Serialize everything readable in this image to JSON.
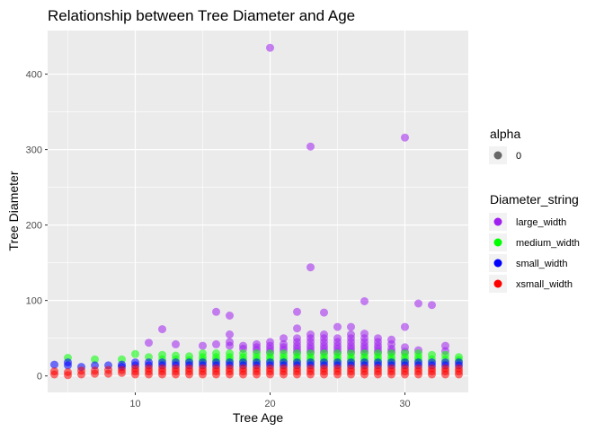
{
  "chart_data": {
    "type": "scatter",
    "title": "Relationship between Tree Diameter and Age",
    "xlabel": "Tree Age",
    "ylabel": "Tree Diameter",
    "xlim": [
      3.5,
      34.7
    ],
    "ylim": [
      -21.8,
      457.8
    ],
    "x_ticks": [
      10,
      20,
      30
    ],
    "y_ticks": [
      0,
      100,
      200,
      300,
      400
    ],
    "grid": true,
    "legend_position": "right",
    "alpha_legend": {
      "title": "alpha",
      "entries": [
        "0"
      ],
      "color": "#595959"
    },
    "color_legend": {
      "title": "Diameter_string",
      "entries": [
        {
          "label": "large_width",
          "color": "#A020F0"
        },
        {
          "label": "medium_width",
          "color": "#00FF00"
        },
        {
          "label": "small_width",
          "color": "#0000FF"
        },
        {
          "label": "xsmall_width",
          "color": "#FF0000"
        }
      ]
    },
    "series": [
      {
        "name": "large_width",
        "color": "#A020F0",
        "points": [
          [
            11,
            44
          ],
          [
            12,
            62
          ],
          [
            13,
            42
          ],
          [
            15,
            40
          ],
          [
            16,
            85
          ],
          [
            16,
            42
          ],
          [
            17,
            80
          ],
          [
            17,
            55
          ],
          [
            17,
            45
          ],
          [
            17,
            40
          ],
          [
            18,
            40
          ],
          [
            18,
            36
          ],
          [
            19,
            42
          ],
          [
            19,
            38
          ],
          [
            19,
            34
          ],
          [
            20,
            435
          ],
          [
            20,
            45
          ],
          [
            20,
            40
          ],
          [
            20,
            36
          ],
          [
            20,
            32
          ],
          [
            21,
            50
          ],
          [
            21,
            42
          ],
          [
            21,
            38
          ],
          [
            21,
            34
          ],
          [
            22,
            85
          ],
          [
            22,
            63
          ],
          [
            22,
            50
          ],
          [
            22,
            45
          ],
          [
            22,
            40
          ],
          [
            22,
            36
          ],
          [
            22,
            32
          ],
          [
            23,
            304
          ],
          [
            23,
            144
          ],
          [
            23,
            55
          ],
          [
            23,
            50
          ],
          [
            23,
            45
          ],
          [
            23,
            40
          ],
          [
            23,
            36
          ],
          [
            23,
            32
          ],
          [
            24,
            84
          ],
          [
            24,
            55
          ],
          [
            24,
            50
          ],
          [
            24,
            45
          ],
          [
            24,
            40
          ],
          [
            24,
            36
          ],
          [
            24,
            32
          ],
          [
            25,
            65
          ],
          [
            25,
            50
          ],
          [
            25,
            45
          ],
          [
            25,
            40
          ],
          [
            25,
            36
          ],
          [
            25,
            32
          ],
          [
            26,
            65
          ],
          [
            26,
            55
          ],
          [
            26,
            50
          ],
          [
            26,
            45
          ],
          [
            26,
            40
          ],
          [
            26,
            36
          ],
          [
            26,
            32
          ],
          [
            27,
            99
          ],
          [
            27,
            56
          ],
          [
            27,
            50
          ],
          [
            27,
            45
          ],
          [
            27,
            40
          ],
          [
            27,
            36
          ],
          [
            27,
            32
          ],
          [
            28,
            50
          ],
          [
            28,
            45
          ],
          [
            28,
            40
          ],
          [
            28,
            36
          ],
          [
            28,
            32
          ],
          [
            29,
            48
          ],
          [
            29,
            42
          ],
          [
            29,
            36
          ],
          [
            29,
            32
          ],
          [
            30,
            316
          ],
          [
            30,
            65
          ],
          [
            30,
            38
          ],
          [
            30,
            32
          ],
          [
            31,
            96
          ],
          [
            31,
            34
          ],
          [
            32,
            94
          ],
          [
            33,
            40
          ],
          [
            33,
            33
          ]
        ]
      },
      {
        "name": "medium_width",
        "color": "#00FF00",
        "points": [
          [
            5,
            24
          ],
          [
            7,
            22
          ],
          [
            9,
            22
          ],
          [
            10,
            29
          ],
          [
            11,
            25
          ],
          [
            12,
            28
          ],
          [
            12,
            22
          ],
          [
            13,
            27
          ],
          [
            13,
            22
          ],
          [
            14,
            26
          ],
          [
            14,
            21
          ],
          [
            15,
            30
          ],
          [
            15,
            25
          ],
          [
            15,
            21
          ],
          [
            16,
            30
          ],
          [
            16,
            25
          ],
          [
            16,
            21
          ],
          [
            17,
            30
          ],
          [
            17,
            25
          ],
          [
            17,
            21
          ],
          [
            18,
            30
          ],
          [
            18,
            25
          ],
          [
            18,
            21
          ],
          [
            19,
            30
          ],
          [
            19,
            25
          ],
          [
            19,
            21
          ],
          [
            20,
            30
          ],
          [
            20,
            25
          ],
          [
            20,
            21
          ],
          [
            21,
            30
          ],
          [
            21,
            25
          ],
          [
            21,
            21
          ],
          [
            22,
            30
          ],
          [
            22,
            25
          ],
          [
            22,
            21
          ],
          [
            23,
            30
          ],
          [
            23,
            25
          ],
          [
            23,
            21
          ],
          [
            24,
            30
          ],
          [
            24,
            25
          ],
          [
            24,
            21
          ],
          [
            25,
            30
          ],
          [
            25,
            25
          ],
          [
            25,
            21
          ],
          [
            26,
            30
          ],
          [
            26,
            25
          ],
          [
            26,
            21
          ],
          [
            27,
            30
          ],
          [
            27,
            25
          ],
          [
            27,
            21
          ],
          [
            28,
            30
          ],
          [
            28,
            25
          ],
          [
            28,
            21
          ],
          [
            29,
            30
          ],
          [
            29,
            25
          ],
          [
            29,
            21
          ],
          [
            30,
            30
          ],
          [
            30,
            25
          ],
          [
            30,
            21
          ],
          [
            31,
            30
          ],
          [
            31,
            25
          ],
          [
            31,
            21
          ],
          [
            32,
            28
          ],
          [
            32,
            22
          ],
          [
            33,
            28
          ],
          [
            33,
            22
          ],
          [
            34,
            25
          ],
          [
            34,
            21
          ]
        ]
      },
      {
        "name": "small_width",
        "color": "#0000FF",
        "points": [
          [
            4,
            15
          ],
          [
            5,
            18
          ],
          [
            5,
            14
          ],
          [
            6,
            12
          ],
          [
            7,
            14
          ],
          [
            8,
            14
          ],
          [
            9,
            15
          ],
          [
            9,
            12
          ],
          [
            10,
            18
          ],
          [
            10,
            14
          ],
          [
            11,
            18
          ],
          [
            11,
            14
          ],
          [
            12,
            18
          ],
          [
            12,
            14
          ],
          [
            13,
            18
          ],
          [
            13,
            14
          ],
          [
            14,
            18
          ],
          [
            14,
            14
          ],
          [
            15,
            18
          ],
          [
            15,
            14
          ],
          [
            16,
            18
          ],
          [
            16,
            14
          ],
          [
            17,
            18
          ],
          [
            17,
            14
          ],
          [
            18,
            18
          ],
          [
            18,
            14
          ],
          [
            19,
            18
          ],
          [
            19,
            14
          ],
          [
            20,
            18
          ],
          [
            20,
            14
          ],
          [
            21,
            18
          ],
          [
            21,
            14
          ],
          [
            22,
            18
          ],
          [
            22,
            14
          ],
          [
            23,
            18
          ],
          [
            23,
            14
          ],
          [
            24,
            18
          ],
          [
            24,
            14
          ],
          [
            25,
            18
          ],
          [
            25,
            14
          ],
          [
            26,
            18
          ],
          [
            26,
            14
          ],
          [
            27,
            18
          ],
          [
            27,
            14
          ],
          [
            28,
            18
          ],
          [
            28,
            14
          ],
          [
            29,
            18
          ],
          [
            29,
            14
          ],
          [
            30,
            18
          ],
          [
            30,
            14
          ],
          [
            31,
            18
          ],
          [
            31,
            14
          ],
          [
            32,
            18
          ],
          [
            32,
            14
          ],
          [
            33,
            18
          ],
          [
            33,
            14
          ],
          [
            34,
            18
          ],
          [
            34,
            14
          ]
        ]
      },
      {
        "name": "xsmall_width",
        "color": "#FF0000",
        "points": [
          [
            4,
            2
          ],
          [
            4,
            6
          ],
          [
            5,
            1
          ],
          [
            5,
            5
          ],
          [
            6,
            2
          ],
          [
            6,
            7
          ],
          [
            7,
            3
          ],
          [
            7,
            7
          ],
          [
            8,
            3
          ],
          [
            8,
            8
          ],
          [
            9,
            4
          ],
          [
            9,
            8
          ],
          [
            10,
            2
          ],
          [
            10,
            6
          ],
          [
            10,
            10
          ],
          [
            11,
            2
          ],
          [
            11,
            6
          ],
          [
            11,
            10
          ],
          [
            12,
            2
          ],
          [
            12,
            6
          ],
          [
            12,
            10
          ],
          [
            13,
            2
          ],
          [
            13,
            6
          ],
          [
            13,
            10
          ],
          [
            14,
            2
          ],
          [
            14,
            6
          ],
          [
            14,
            10
          ],
          [
            15,
            2
          ],
          [
            15,
            6
          ],
          [
            15,
            10
          ],
          [
            16,
            2
          ],
          [
            16,
            6
          ],
          [
            16,
            10
          ],
          [
            17,
            2
          ],
          [
            17,
            6
          ],
          [
            17,
            10
          ],
          [
            18,
            2
          ],
          [
            18,
            6
          ],
          [
            18,
            10
          ],
          [
            19,
            2
          ],
          [
            19,
            6
          ],
          [
            19,
            10
          ],
          [
            20,
            2
          ],
          [
            20,
            6
          ],
          [
            20,
            10
          ],
          [
            21,
            2
          ],
          [
            21,
            6
          ],
          [
            21,
            10
          ],
          [
            22,
            2
          ],
          [
            22,
            6
          ],
          [
            22,
            10
          ],
          [
            23,
            2
          ],
          [
            23,
            6
          ],
          [
            23,
            10
          ],
          [
            24,
            2
          ],
          [
            24,
            6
          ],
          [
            24,
            10
          ],
          [
            25,
            2
          ],
          [
            25,
            6
          ],
          [
            25,
            10
          ],
          [
            26,
            2
          ],
          [
            26,
            6
          ],
          [
            26,
            10
          ],
          [
            27,
            2
          ],
          [
            27,
            6
          ],
          [
            27,
            10
          ],
          [
            28,
            2
          ],
          [
            28,
            6
          ],
          [
            28,
            10
          ],
          [
            29,
            2
          ],
          [
            29,
            6
          ],
          [
            29,
            10
          ],
          [
            30,
            2
          ],
          [
            30,
            6
          ],
          [
            30,
            10
          ],
          [
            31,
            2
          ],
          [
            31,
            6
          ],
          [
            31,
            10
          ],
          [
            32,
            2
          ],
          [
            32,
            6
          ],
          [
            32,
            10
          ],
          [
            33,
            2
          ],
          [
            33,
            6
          ],
          [
            33,
            10
          ],
          [
            34,
            2
          ],
          [
            34,
            6
          ],
          [
            34,
            10
          ]
        ]
      }
    ]
  }
}
